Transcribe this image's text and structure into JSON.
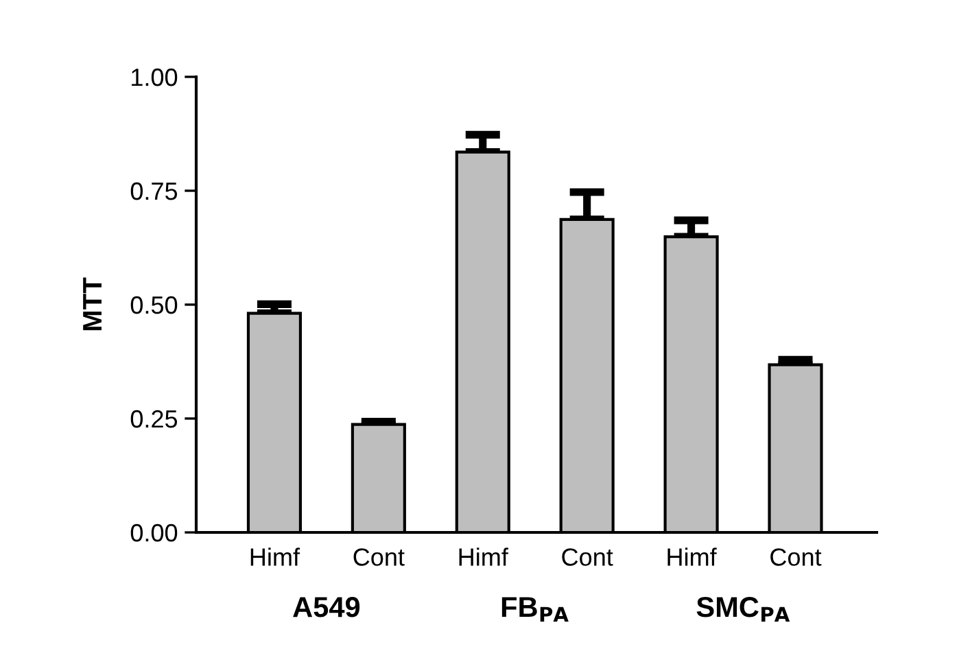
{
  "chart_data": {
    "type": "bar",
    "ylabel": "MTT",
    "categories": [
      "Himf",
      "Cont",
      "Himf",
      "Cont",
      "Himf",
      "Cont"
    ],
    "values": [
      0.481,
      0.237,
      0.835,
      0.687,
      0.649,
      0.368
    ],
    "errors": [
      [
        0.481,
        0.501
      ],
      [
        0.237,
        0.243
      ],
      [
        0.835,
        0.873
      ],
      [
        0.687,
        0.747
      ],
      [
        0.649,
        0.685
      ],
      [
        0.368,
        0.379
      ]
    ],
    "color": "#bebebe",
    "ylim": [
      0,
      1
    ],
    "yticks": [
      {
        "value": 0,
        "label": "0.00"
      },
      {
        "value": 0.25,
        "label": "0.25"
      },
      {
        "value": 0.5,
        "label": "0.50"
      },
      {
        "value": 0.75,
        "label": "0.75"
      },
      {
        "value": 1,
        "label": "1.00"
      }
    ],
    "grid": false,
    "legend": false,
    "annotations": [
      "A549",
      "FB$_{PA}$",
      "SMC$_{PA}$"
    ]
  }
}
